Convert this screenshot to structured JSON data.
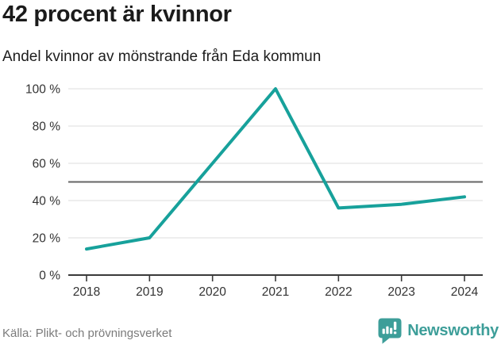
{
  "title": "42 procent är kvinnor",
  "subtitle": "Andel kvinnor av mönstrande från Eda kommun",
  "source": "Källa: Plikt- och prövningsverket",
  "branding": {
    "name": "Newsworthy",
    "color": "#3d9e99",
    "icon": "newsworthy-speech-bubble-bar-chart-icon"
  },
  "chart_data": {
    "type": "line",
    "title": "42 procent är kvinnor",
    "subtitle": "Andel kvinnor av mönstrande från Eda kommun",
    "x": [
      2018,
      2019,
      2020,
      2021,
      2022,
      2023,
      2024
    ],
    "series": [
      {
        "name": "Andel kvinnor av mönstrande",
        "values": [
          14,
          20,
          60,
          100,
          36,
          38,
          42
        ]
      }
    ],
    "xlabel": "",
    "ylabel": "",
    "ylim": [
      0,
      100
    ],
    "yticks": [
      0,
      20,
      40,
      60,
      80,
      100
    ],
    "ytick_format": "{v} %",
    "reference_line": 50,
    "grid": true,
    "legend": "none",
    "line_color": "#17a19b",
    "reference_line_color": "#666666",
    "grid_color": "#e4e4e4",
    "axis_color": "#3a3a3a"
  }
}
